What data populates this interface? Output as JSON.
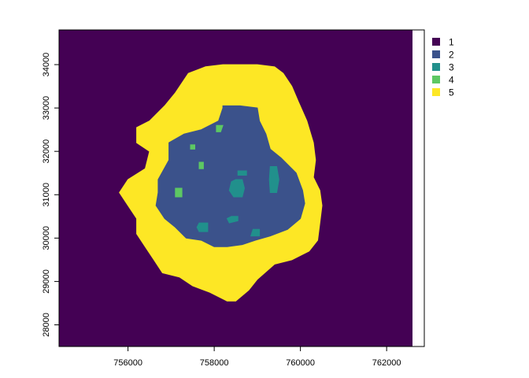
{
  "chart_data": {
    "type": "heatmap",
    "title": "",
    "xlabel": "",
    "ylabel": "",
    "xlim": [
      754400,
      762600
    ],
    "ylim": [
      27500,
      34800
    ],
    "x_ticks": [
      756000,
      758000,
      760000,
      762000
    ],
    "y_ticks": [
      28000,
      29000,
      30000,
      31000,
      32000,
      33000,
      34000
    ],
    "x_tick_labels": [
      "756000",
      "758000",
      "760000",
      "762000"
    ],
    "y_tick_labels": [
      "28000",
      "29000",
      "30000",
      "31000",
      "32000",
      "33000",
      "34000"
    ],
    "legend": {
      "placement": "right",
      "entries": [
        {
          "label": "1",
          "color": "#440154"
        },
        {
          "label": "2",
          "color": "#3B528B"
        },
        {
          "label": "3",
          "color": "#21908C"
        },
        {
          "label": "4",
          "color": "#5DC863"
        },
        {
          "label": "5",
          "color": "#FDE725"
        }
      ]
    },
    "background_class": "1",
    "zones": [
      {
        "class": "5",
        "outline": [
          [
            758200,
            34000
          ],
          [
            758600,
            34000
          ],
          [
            759000,
            34000
          ],
          [
            759400,
            33950
          ],
          [
            759600,
            33800
          ],
          [
            759800,
            33500
          ],
          [
            759950,
            33150
          ],
          [
            760150,
            32700
          ],
          [
            760300,
            32200
          ],
          [
            760350,
            31800
          ],
          [
            760300,
            31400
          ],
          [
            760450,
            31100
          ],
          [
            760500,
            30750
          ],
          [
            760450,
            30350
          ],
          [
            760400,
            29950
          ],
          [
            760200,
            29700
          ],
          [
            759800,
            29500
          ],
          [
            759400,
            29400
          ],
          [
            759000,
            29050
          ],
          [
            758800,
            28800
          ],
          [
            758500,
            28550
          ],
          [
            758300,
            28550
          ],
          [
            757900,
            28750
          ],
          [
            757500,
            28900
          ],
          [
            757200,
            29100
          ],
          [
            756800,
            29200
          ],
          [
            756600,
            29500
          ],
          [
            756400,
            29800
          ],
          [
            756200,
            30100
          ],
          [
            756200,
            30450
          ],
          [
            756000,
            30750
          ],
          [
            755800,
            31050
          ],
          [
            756000,
            31350
          ],
          [
            756400,
            31600
          ],
          [
            756500,
            32000
          ],
          [
            756200,
            32200
          ],
          [
            756200,
            32550
          ],
          [
            756500,
            32700
          ],
          [
            756850,
            33050
          ],
          [
            757100,
            33350
          ],
          [
            757400,
            33800
          ],
          [
            757800,
            33950
          ]
        ]
      },
      {
        "class": "2",
        "outline": [
          [
            758200,
            33050
          ],
          [
            758600,
            33050
          ],
          [
            759000,
            33000
          ],
          [
            759050,
            32700
          ],
          [
            759200,
            32400
          ],
          [
            759300,
            32050
          ],
          [
            759550,
            31850
          ],
          [
            759900,
            31500
          ],
          [
            760050,
            31100
          ],
          [
            760100,
            30800
          ],
          [
            760000,
            30450
          ],
          [
            759700,
            30200
          ],
          [
            759300,
            30050
          ],
          [
            758950,
            29950
          ],
          [
            758650,
            29850
          ],
          [
            758300,
            29800
          ],
          [
            758000,
            29800
          ],
          [
            757700,
            29950
          ],
          [
            757350,
            30000
          ],
          [
            757100,
            30250
          ],
          [
            756850,
            30450
          ],
          [
            756650,
            30750
          ],
          [
            756700,
            31050
          ],
          [
            756700,
            31350
          ],
          [
            756950,
            31800
          ],
          [
            756950,
            32200
          ],
          [
            757300,
            32400
          ],
          [
            757700,
            32500
          ],
          [
            758100,
            32700
          ],
          [
            758200,
            33000
          ]
        ]
      },
      {
        "class": "3",
        "outline": [
          [
            758500,
            31350
          ],
          [
            758650,
            31350
          ],
          [
            758700,
            31150
          ],
          [
            758650,
            30950
          ],
          [
            758450,
            30950
          ],
          [
            758350,
            31100
          ],
          [
            758400,
            31300
          ]
        ]
      },
      {
        "class": "3",
        "outline": [
          [
            759300,
            31650
          ],
          [
            759450,
            31650
          ],
          [
            759500,
            31350
          ],
          [
            759450,
            31050
          ],
          [
            759300,
            31050
          ],
          [
            759280,
            31350
          ]
        ]
      },
      {
        "class": "3",
        "outline": [
          [
            757650,
            30350
          ],
          [
            757850,
            30350
          ],
          [
            757850,
            30150
          ],
          [
            757650,
            30150
          ],
          [
            757600,
            30250
          ]
        ]
      },
      {
        "class": "3",
        "outline": [
          [
            758400,
            30500
          ],
          [
            758550,
            30500
          ],
          [
            758550,
            30400
          ],
          [
            758350,
            30350
          ],
          [
            758300,
            30450
          ]
        ]
      },
      {
        "class": "3",
        "outline": [
          [
            758900,
            30200
          ],
          [
            759050,
            30200
          ],
          [
            759050,
            30050
          ],
          [
            758850,
            30050
          ]
        ]
      },
      {
        "class": "3",
        "outline": [
          [
            758550,
            31550
          ],
          [
            758750,
            31550
          ],
          [
            758750,
            31450
          ],
          [
            758550,
            31450
          ]
        ]
      },
      {
        "class": "4",
        "outline": [
          [
            757100,
            31150
          ],
          [
            757250,
            31150
          ],
          [
            757250,
            30950
          ],
          [
            757100,
            30950
          ]
        ]
      },
      {
        "class": "4",
        "outline": [
          [
            758050,
            32600
          ],
          [
            758200,
            32600
          ],
          [
            758150,
            32450
          ],
          [
            758050,
            32450
          ]
        ]
      },
      {
        "class": "4",
        "outline": [
          [
            757650,
            31750
          ],
          [
            757750,
            31750
          ],
          [
            757750,
            31600
          ],
          [
            757650,
            31600
          ]
        ]
      },
      {
        "class": "4",
        "outline": [
          [
            757450,
            32150
          ],
          [
            757550,
            32150
          ],
          [
            757550,
            32050
          ],
          [
            757450,
            32050
          ]
        ]
      }
    ]
  }
}
